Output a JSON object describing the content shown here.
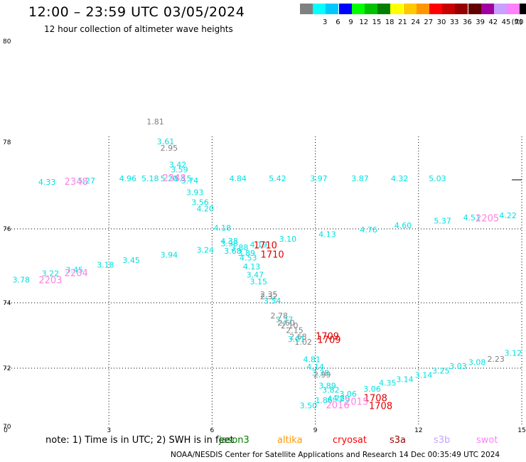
{
  "header": {
    "title": "12:00 – 23:59 UTC 03/05/2024",
    "subtitle": "12 hour collection of altimeter wave heights"
  },
  "legend": {
    "unit": "(ft)",
    "bins": [
      {
        "label": "",
        "color": "#808080"
      },
      {
        "label": "3",
        "color": "#00ffff"
      },
      {
        "label": "6",
        "color": "#00c8ff"
      },
      {
        "label": "9",
        "color": "#0000ff"
      },
      {
        "label": "12",
        "color": "#00ff00"
      },
      {
        "label": "15",
        "color": "#00c000"
      },
      {
        "label": "18",
        "color": "#008000"
      },
      {
        "label": "21",
        "color": "#ffff00"
      },
      {
        "label": "24",
        "color": "#ffc800"
      },
      {
        "label": "27",
        "color": "#ff9600"
      },
      {
        "label": "30",
        "color": "#ff0000"
      },
      {
        "label": "33",
        "color": "#c80000"
      },
      {
        "label": "36",
        "color": "#960000"
      },
      {
        "label": "39",
        "color": "#640000"
      },
      {
        "label": "42",
        "color": "#a000a0"
      },
      {
        "label": "45",
        "color": "#c8a0ff"
      },
      {
        "label": "70",
        "color": "#ff80ff"
      },
      {
        "label": "",
        "color": "#000000"
      }
    ]
  },
  "map": {
    "y_axis_labels": [
      {
        "label": "80",
        "lat": 80
      },
      {
        "label": "78",
        "lat": 78
      },
      {
        "label": "76",
        "lat": 76
      },
      {
        "label": "74",
        "lat": 74
      },
      {
        "label": "72",
        "lat": 72
      },
      {
        "label": "70",
        "lat": 70
      }
    ],
    "x_axis_labels": [
      {
        "label": "0",
        "lon": 0
      },
      {
        "label": "3",
        "lon": 3
      },
      {
        "label": "6",
        "lon": 6
      },
      {
        "label": "9",
        "lon": 9
      },
      {
        "label": "12",
        "lon": 12
      },
      {
        "label": "15",
        "lon": 15
      }
    ],
    "observations": [
      {
        "text": "1.81",
        "color": "#808080",
        "lon": 4.35,
        "lat": 78.35
      },
      {
        "text": "3.61",
        "color": "#00e0e0",
        "lon": 4.65,
        "lat": 77.95
      },
      {
        "text": "2.95",
        "color": "#808080",
        "lon": 4.75,
        "lat": 77.8
      },
      {
        "text": "3.42",
        "color": "#00e0e0",
        "lon": 5.0,
        "lat": 77.42
      },
      {
        "text": "3.59",
        "color": "#00e0e0",
        "lon": 5.05,
        "lat": 77.3
      },
      {
        "text": "3.74",
        "color": "#00e0e0",
        "lon": 5.35,
        "lat": 77.05
      },
      {
        "text": "3.93",
        "color": "#00e0e0",
        "lon": 5.5,
        "lat": 76.78
      },
      {
        "text": "3.56",
        "color": "#00e0e0",
        "lon": 5.65,
        "lat": 76.55
      },
      {
        "text": "4.20",
        "color": "#00e0e0",
        "lon": 5.8,
        "lat": 76.4
      },
      {
        "text": "4.18",
        "color": "#00e0e0",
        "lon": 6.3,
        "lat": 75.95
      },
      {
        "text": "4.38",
        "color": "#00e0e0",
        "lon": 6.5,
        "lat": 75.6
      },
      {
        "text": "3.98",
        "color": "#00e0e0",
        "lon": 6.5,
        "lat": 75.53
      },
      {
        "text": "3.88",
        "color": "#00e0e0",
        "lon": 6.8,
        "lat": 75.42
      },
      {
        "text": "3.68",
        "color": "#00e0e0",
        "lon": 6.6,
        "lat": 75.33
      },
      {
        "text": "3.89",
        "color": "#00e0e0",
        "lon": 7.0,
        "lat": 75.27
      },
      {
        "text": "4.53",
        "color": "#00e0e0",
        "lon": 7.05,
        "lat": 75.14
      },
      {
        "text": "4.13",
        "color": "#00e0e0",
        "lon": 7.15,
        "lat": 74.9
      },
      {
        "text": "3.47",
        "color": "#00e0e0",
        "lon": 7.25,
        "lat": 74.68
      },
      {
        "text": "3.15",
        "color": "#00e0e0",
        "lon": 7.35,
        "lat": 74.5
      },
      {
        "text": "2.35",
        "color": "#808080",
        "lon": 7.65,
        "lat": 74.15
      },
      {
        "text": "2.32",
        "color": "#808080",
        "lon": 7.65,
        "lat": 74.1
      },
      {
        "text": "3.54",
        "color": "#00e0e0",
        "lon": 7.75,
        "lat": 73.98
      },
      {
        "text": "2.78",
        "color": "#808080",
        "lon": 7.95,
        "lat": 73.52
      },
      {
        "text": "3.27",
        "color": "#00e0e0",
        "lon": 8.1,
        "lat": 73.4
      },
      {
        "text": "2.60",
        "color": "#808080",
        "lon": 8.15,
        "lat": 73.3
      },
      {
        "text": "2.10",
        "color": "#808080",
        "lon": 8.25,
        "lat": 73.22
      },
      {
        "text": "2.15",
        "color": "#808080",
        "lon": 8.4,
        "lat": 73.08
      },
      {
        "text": "2.68",
        "color": "#808080",
        "lon": 8.5,
        "lat": 72.88
      },
      {
        "text": "1.02",
        "color": "#808080",
        "lon": 8.65,
        "lat": 72.72
      },
      {
        "text": "3.01",
        "color": "#00e0e0",
        "lon": 8.45,
        "lat": 72.8
      },
      {
        "text": "4.81",
        "color": "#00e0e0",
        "lon": 8.9,
        "lat": 72.18
      },
      {
        "text": "4.14",
        "color": "#00e0e0",
        "lon": 9.0,
        "lat": 71.95
      },
      {
        "text": "3.38",
        "color": "#00e0e0",
        "lon": 9.15,
        "lat": 71.75
      },
      {
        "text": "2.99",
        "color": "#808080",
        "lon": 9.2,
        "lat": 71.68
      },
      {
        "text": "3.89",
        "color": "#00e0e0",
        "lon": 9.35,
        "lat": 71.3
      },
      {
        "text": "3.82",
        "color": "#00e0e0",
        "lon": 9.45,
        "lat": 71.16
      },
      {
        "text": "3.06",
        "color": "#00e0e0",
        "lon": 9.95,
        "lat": 71.03
      },
      {
        "text": "1.86",
        "color": "#00e0e0",
        "lon": 9.25,
        "lat": 70.8
      },
      {
        "text": "3.50",
        "color": "#00e0e0",
        "lon": 8.8,
        "lat": 70.62
      },
      {
        "text": "4.72",
        "color": "#00e0e0",
        "lon": 9.6,
        "lat": 70.86
      },
      {
        "text": "4.80",
        "color": "#00e0e0",
        "lon": 9.75,
        "lat": 70.88
      },
      {
        "text": "3.06",
        "color": "#00e0e0",
        "lon": 10.65,
        "lat": 71.2
      },
      {
        "text": "4.35",
        "color": "#00e0e0",
        "lon": 11.1,
        "lat": 71.4
      },
      {
        "text": "3.14",
        "color": "#00e0e0",
        "lon": 11.6,
        "lat": 71.53
      },
      {
        "text": "3.14",
        "color": "#00e0e0",
        "lon": 12.15,
        "lat": 71.67
      },
      {
        "text": "3.25",
        "color": "#00e0e0",
        "lon": 12.65,
        "lat": 71.82
      },
      {
        "text": "3.03",
        "color": "#00e0e0",
        "lon": 13.15,
        "lat": 71.97
      },
      {
        "text": "3.08",
        "color": "#00e0e0",
        "lon": 13.7,
        "lat": 72.1
      },
      {
        "text": "2.23",
        "color": "#808080",
        "lon": 14.25,
        "lat": 72.2
      },
      {
        "text": "3.12",
        "color": "#00e0e0",
        "lon": 14.75,
        "lat": 72.38
      },
      {
        "text": "4.33",
        "color": "#00e0e0",
        "lon": 1.2,
        "lat": 77.02
      },
      {
        "text": "5.27",
        "color": "#00e0e0",
        "lon": 2.35,
        "lat": 77.05
      },
      {
        "text": "4.96",
        "color": "#00e0e0",
        "lon": 3.55,
        "lat": 77.1
      },
      {
        "text": "5.18",
        "color": "#00e0e0",
        "lon": 4.2,
        "lat": 77.1
      },
      {
        "text": "5.20",
        "color": "#00e0e0",
        "lon": 4.75,
        "lat": 77.1
      },
      {
        "text": "5.15",
        "color": "#00e0e0",
        "lon": 5.15,
        "lat": 77.1
      },
      {
        "text": "4.84",
        "color": "#00e0e0",
        "lon": 6.75,
        "lat": 77.1
      },
      {
        "text": "5.42",
        "color": "#00e0e0",
        "lon": 7.9,
        "lat": 77.1
      },
      {
        "text": "3.97",
        "color": "#00e0e0",
        "lon": 9.1,
        "lat": 77.1
      },
      {
        "text": "3.87",
        "color": "#00e0e0",
        "lon": 10.3,
        "lat": 77.1
      },
      {
        "text": "4.32",
        "color": "#00e0e0",
        "lon": 11.45,
        "lat": 77.1
      },
      {
        "text": "5.03",
        "color": "#00e0e0",
        "lon": 12.55,
        "lat": 77.1
      },
      {
        "text": "4.22",
        "color": "#00e0e0",
        "lon": 14.6,
        "lat": 76.25
      },
      {
        "text": "4.51",
        "color": "#00e0e0",
        "lon": 13.55,
        "lat": 76.2
      },
      {
        "text": "5.37",
        "color": "#00e0e0",
        "lon": 12.7,
        "lat": 76.12
      },
      {
        "text": "4.60",
        "color": "#00e0e0",
        "lon": 11.55,
        "lat": 76.02
      },
      {
        "text": "4.76",
        "color": "#00e0e0",
        "lon": 10.55,
        "lat": 75.9
      },
      {
        "text": "4.13",
        "color": "#00e0e0",
        "lon": 9.35,
        "lat": 75.78
      },
      {
        "text": "3.10",
        "color": "#00e0e0",
        "lon": 8.2,
        "lat": 75.65
      },
      {
        "text": "4.19",
        "color": "#00e0e0",
        "lon": 7.35,
        "lat": 75.5
      },
      {
        "text": "3.24",
        "color": "#00e0e0",
        "lon": 5.8,
        "lat": 75.36
      },
      {
        "text": "3.94",
        "color": "#00e0e0",
        "lon": 4.75,
        "lat": 75.22
      },
      {
        "text": "3.45",
        "color": "#00e0e0",
        "lon": 3.65,
        "lat": 75.08
      },
      {
        "text": "3.18",
        "color": "#00e0e0",
        "lon": 2.9,
        "lat": 74.95
      },
      {
        "text": "3.45",
        "color": "#00e0e0",
        "lon": 2.0,
        "lat": 74.82
      },
      {
        "text": "3.22",
        "color": "#00e0e0",
        "lon": 1.3,
        "lat": 74.72
      },
      {
        "text": "3.78",
        "color": "#00e0e0",
        "lon": 0.45,
        "lat": 74.55
      }
    ],
    "stations": [
      {
        "text": "2348",
        "color": "#ff80e0",
        "lon": 2.05,
        "lat": 77.02
      },
      {
        "text": "2348",
        "color": "#ff80e0",
        "lon": 4.9,
        "lat": 77.1
      },
      {
        "text": "2205",
        "color": "#ff80e0",
        "lon": 14.0,
        "lat": 76.17
      },
      {
        "text": "1710",
        "color": "#e00000",
        "lon": 7.55,
        "lat": 75.47
      },
      {
        "text": "1710",
        "color": "#e00000",
        "lon": 7.75,
        "lat": 75.22
      },
      {
        "text": "2204",
        "color": "#ff80e0",
        "lon": 2.05,
        "lat": 74.72
      },
      {
        "text": "2203",
        "color": "#ff80e0",
        "lon": 1.3,
        "lat": 74.53
      },
      {
        "text": "1709",
        "color": "#e00000",
        "lon": 9.35,
        "lat": 72.88
      },
      {
        "text": "1709",
        "color": "#e00000",
        "lon": 9.4,
        "lat": 72.77
      },
      {
        "text": "1708",
        "color": "#e00000",
        "lon": 10.75,
        "lat": 70.86
      },
      {
        "text": "1708",
        "color": "#e00000",
        "lon": 10.9,
        "lat": 70.6
      },
      {
        "text": "2016",
        "color": "#ff80e0",
        "lon": 9.65,
        "lat": 70.62
      },
      {
        "text": "2015",
        "color": "#ff80e0",
        "lon": 10.2,
        "lat": 70.75
      }
    ]
  },
  "notes": {
    "text": "note:  1) Time is in UTC; 2) SWH is in feet"
  },
  "satellites": [
    {
      "name": "jason3",
      "color": "#008000"
    },
    {
      "name": "altika",
      "color": "#ff9600"
    },
    {
      "name": "cryosat",
      "color": "#ff0000"
    },
    {
      "name": "s3a",
      "color": "#960000"
    },
    {
      "name": "s3b",
      "color": "#c8a0ff"
    },
    {
      "name": "swot",
      "color": "#ff80ff"
    }
  ],
  "footer": {
    "text": "NOAA/NESDIS Center for Satellite Applications and Research    14 Dec 00:35:49 UTC 2024"
  }
}
